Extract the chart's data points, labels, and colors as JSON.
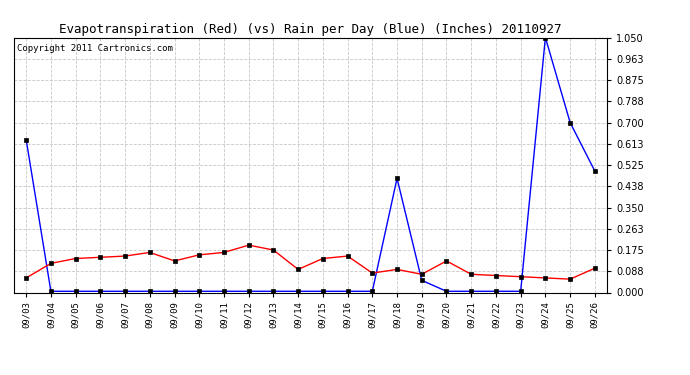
{
  "title": "Evapotranspiration (Red) (vs) Rain per Day (Blue) (Inches) 20110927",
  "copyright": "Copyright 2011 Cartronics.com",
  "dates": [
    "09/03",
    "09/04",
    "09/05",
    "09/06",
    "09/07",
    "09/08",
    "09/09",
    "09/10",
    "09/11",
    "09/12",
    "09/13",
    "09/14",
    "09/15",
    "09/16",
    "09/17",
    "09/18",
    "09/19",
    "09/20",
    "09/21",
    "09/22",
    "09/23",
    "09/24",
    "09/25",
    "09/26"
  ],
  "blue_rain": [
    0.63,
    0.005,
    0.005,
    0.005,
    0.005,
    0.005,
    0.005,
    0.005,
    0.005,
    0.005,
    0.005,
    0.005,
    0.005,
    0.005,
    0.005,
    0.47,
    0.05,
    0.005,
    0.005,
    0.005,
    0.005,
    1.05,
    0.7,
    0.5
  ],
  "red_et": [
    0.06,
    0.12,
    0.14,
    0.145,
    0.15,
    0.165,
    0.13,
    0.155,
    0.165,
    0.195,
    0.175,
    0.095,
    0.14,
    0.15,
    0.08,
    0.095,
    0.075,
    0.13,
    0.075,
    0.07,
    0.065,
    0.06,
    0.055,
    0.1
  ],
  "ylim": [
    0.0,
    1.05
  ],
  "yticks": [
    0.0,
    0.088,
    0.175,
    0.263,
    0.35,
    0.438,
    0.525,
    0.613,
    0.7,
    0.788,
    0.875,
    0.963,
    1.05
  ],
  "bg_color": "#ffffff",
  "grid_color": "#c8c8c8",
  "blue_color": "#0000ff",
  "red_color": "#ff0000",
  "title_fontsize": 9,
  "copyright_fontsize": 6.5,
  "tick_fontsize": 6.5,
  "ytick_fontsize": 7
}
